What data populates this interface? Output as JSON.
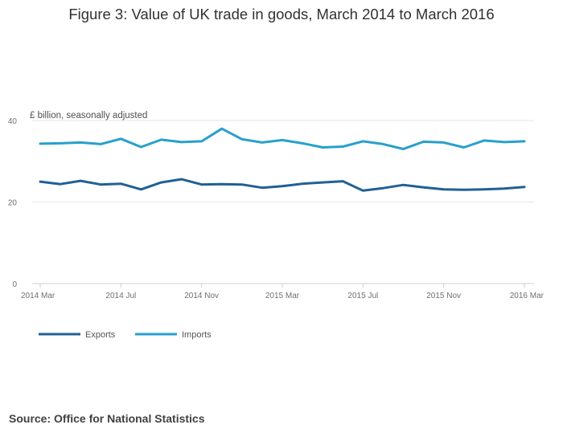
{
  "title": "Figure 3: Value of UK trade in goods, March 2014 to March 2016",
  "source": "Source: Office for National Statistics",
  "chart_data": {
    "type": "line",
    "title": "Figure 3: Value of UK trade in goods, March 2014 to March 2016",
    "ylabel": "£ billion, seasonally adjusted",
    "xlabel": "",
    "ylim": [
      0,
      40
    ],
    "yticks": [
      0,
      20,
      40
    ],
    "x": [
      "2014 Mar",
      "2014 Apr",
      "2014 May",
      "2014 Jun",
      "2014 Jul",
      "2014 Aug",
      "2014 Sep",
      "2014 Oct",
      "2014 Nov",
      "2014 Dec",
      "2015 Jan",
      "2015 Feb",
      "2015 Mar",
      "2015 Apr",
      "2015 May",
      "2015 Jun",
      "2015 Jul",
      "2015 Aug",
      "2015 Sep",
      "2015 Oct",
      "2015 Nov",
      "2015 Dec",
      "2016 Jan",
      "2016 Feb",
      "2016 Mar"
    ],
    "xtick_labels": [
      "2014 Mar",
      "2014 Jul",
      "2014 Nov",
      "2015 Mar",
      "2015 Jul",
      "2015 Nov",
      "2016 Mar"
    ],
    "xtick_indices": [
      0,
      4,
      8,
      12,
      16,
      20,
      24
    ],
    "series": [
      {
        "name": "Exports",
        "color": "#206095",
        "values": [
          25.0,
          24.4,
          25.2,
          24.3,
          24.5,
          23.1,
          24.8,
          25.6,
          24.3,
          24.4,
          24.3,
          23.5,
          23.9,
          24.5,
          24.8,
          25.1,
          22.8,
          23.4,
          24.2,
          23.6,
          23.1,
          23.0,
          23.1,
          23.3,
          23.7
        ]
      },
      {
        "name": "Imports",
        "color": "#27a0cc",
        "values": [
          34.3,
          34.4,
          34.6,
          34.2,
          35.5,
          33.5,
          35.3,
          34.7,
          34.9,
          38.0,
          35.4,
          34.6,
          35.2,
          34.4,
          33.4,
          33.6,
          34.9,
          34.2,
          33.0,
          34.8,
          34.6,
          33.4,
          35.1,
          34.7,
          34.9
        ]
      }
    ],
    "legend": "bottom-left",
    "grid": true
  }
}
